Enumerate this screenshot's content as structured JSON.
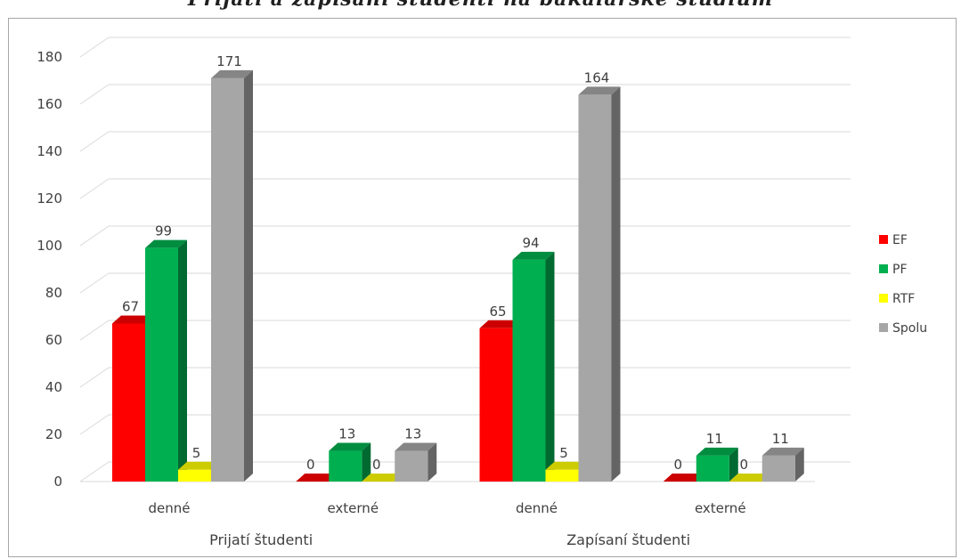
{
  "header": {
    "title": "Prijatí a zapísaní študenti na bakalárske štúdium"
  },
  "chart_data": {
    "type": "bar",
    "title": "",
    "xlabel": "",
    "ylabel": "",
    "ylim": [
      0,
      180
    ],
    "ytick_step": 20,
    "grid": true,
    "legend_position": "right",
    "categories": [
      "denné",
      "externé",
      "denné",
      "externé"
    ],
    "groups": [
      {
        "label": "Prijatí študenti",
        "span": [
          0,
          1
        ]
      },
      {
        "label": "Zapísaní študenti",
        "span": [
          2,
          3
        ]
      }
    ],
    "series": [
      {
        "name": "EF",
        "color": "#ff0000",
        "values": [
          67,
          0,
          65,
          0
        ]
      },
      {
        "name": "PF",
        "color": "#00b050",
        "values": [
          99,
          13,
          94,
          11
        ]
      },
      {
        "name": "RTF",
        "color": "#ffff00",
        "values": [
          5,
          0,
          5,
          0
        ]
      },
      {
        "name": "Spolu",
        "color": "#a6a6a6",
        "values": [
          171,
          13,
          164,
          11
        ]
      }
    ],
    "data_labels": [
      [
        "67",
        "0",
        "65",
        "0"
      ],
      [
        "99",
        "13",
        "94",
        "11"
      ],
      [
        "5",
        "0",
        "5",
        "0"
      ],
      [
        "171",
        "13",
        "164",
        "11"
      ]
    ]
  }
}
